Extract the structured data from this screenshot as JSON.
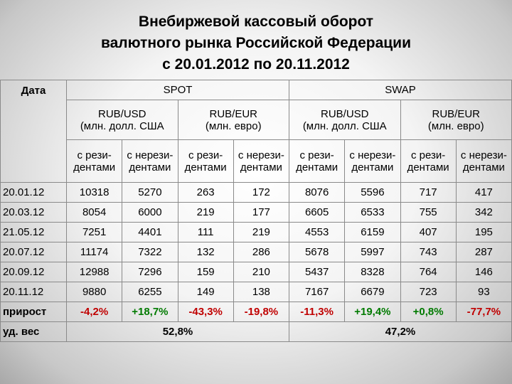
{
  "title": [
    "Внебиржевой кассовый оборот",
    "валютного рынка Российской Федерации",
    "с 20.01.2012 по 20.11.2012"
  ],
  "table": {
    "date_header": "Дата",
    "groups": [
      "SPOT",
      "SWAP"
    ],
    "pairs": [
      {
        "name": "RUB/USD",
        "unit": "(млн. долл. США"
      },
      {
        "name": "RUB/EUR",
        "unit": "(млн. евро)"
      },
      {
        "name": "RUB/USD",
        "unit": "(млн. долл. США"
      },
      {
        "name": "RUB/EUR",
        "unit": "(млн. евро)"
      }
    ],
    "subheaders": [
      [
        "с рези-",
        "дентами"
      ],
      [
        "с нерези-",
        "дентами"
      ],
      [
        "с рези-",
        "дентами"
      ],
      [
        "с нерези-",
        "дентами"
      ],
      [
        "с рези-",
        "дентами"
      ],
      [
        "с нерези-",
        "дентами"
      ],
      [
        "с рези-",
        "дентами"
      ],
      [
        "с нерези-",
        "дентами"
      ]
    ],
    "rows": [
      {
        "date": "20.01.12",
        "values": [
          10318,
          5270,
          263,
          172,
          8076,
          5596,
          717,
          417
        ]
      },
      {
        "date": "20.03.12",
        "values": [
          8054,
          6000,
          219,
          177,
          6605,
          6533,
          755,
          342
        ]
      },
      {
        "date": "21.05.12",
        "values": [
          7251,
          4401,
          111,
          219,
          4553,
          6159,
          407,
          195
        ]
      },
      {
        "date": "20.07.12",
        "values": [
          11174,
          7322,
          132,
          286,
          5678,
          5997,
          743,
          287
        ]
      },
      {
        "date": "20.09.12",
        "values": [
          12988,
          7296,
          159,
          210,
          5437,
          8328,
          764,
          146
        ]
      },
      {
        "date": "20.11.12",
        "values": [
          9880,
          6255,
          149,
          138,
          7167,
          6679,
          723,
          93
        ]
      }
    ],
    "growth": {
      "label": "прирост",
      "values": [
        "-4,2%",
        "+18,7%",
        "-43,3%",
        "-19,8%",
        "-11,3%",
        "+19,4%",
        "+0,8%",
        "-77,7%"
      ]
    },
    "share": {
      "label": "уд. вес",
      "values": [
        "52,8%",
        "47,2%"
      ]
    }
  }
}
